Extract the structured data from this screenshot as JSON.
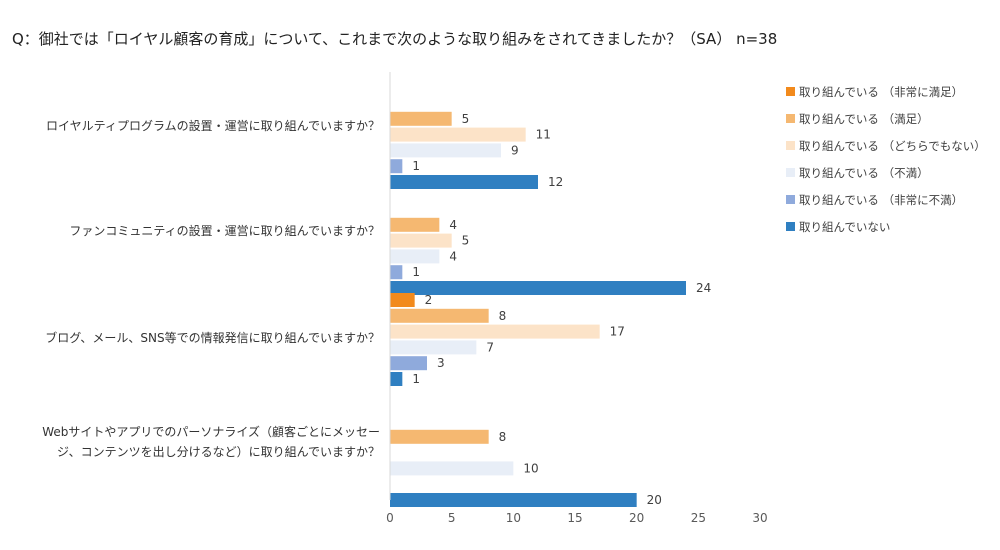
{
  "title": "Q：御社では「ロイヤル顧客の育成」について、これまで次のような取り組みをされてきましたか？（SA） n=38",
  "chart_data": {
    "type": "bar",
    "orientation": "horizontal",
    "title": "Q：御社では「ロイヤル顧客の育成」について、これまで次のような取り組みをされてきましたか？（SA） n=38",
    "categories": [
      "ロイヤルティプログラムの設置・運営に取り組んでいますか？",
      "ファンコミュニティの設置・運営に取り組んでいますか？",
      "ブログ、メール、SNS等での情報発信に取り組んでいますか？",
      "Webサイトやアプリでのパーソナライズ（顧客ごとにメッセージ、コンテンツを出し分けるなど）に取り組んでいますか？"
    ],
    "category_lines": [
      [
        "ロイヤルティプログラムの設置・運営に取り組んでいますか？"
      ],
      [
        "ファンコミュニティの設置・運営に取り組んでいますか？"
      ],
      [
        "ブログ、メール、SNS等での情報発信に取り組んでいますか？"
      ],
      [
        "Webサイトやアプリでのパーソナライズ（顧客ごとにメッセー",
        "ジ、コンテンツを出し分けるなど）に取り組んでいますか？"
      ]
    ],
    "series": [
      {
        "name": "取り組んでいる （非常に満足）",
        "color": "#F28A1C",
        "values": [
          0,
          0,
          2,
          0
        ]
      },
      {
        "name": "取り組んでいる （満足）",
        "color": "#F5B871",
        "values": [
          5,
          4,
          8,
          8
        ]
      },
      {
        "name": "取り組んでいる （どちらでもない）",
        "color": "#FCE3C8",
        "values": [
          11,
          5,
          17,
          0
        ]
      },
      {
        "name": "取り組んでいる （不満）",
        "color": "#E8EEF7",
        "values": [
          9,
          4,
          7,
          10
        ]
      },
      {
        "name": "取り組んでいる （非常に不満）",
        "color": "#8FAADC",
        "values": [
          1,
          1,
          3,
          0
        ]
      },
      {
        "name": "取り組んでいない",
        "color": "#2F7FC1",
        "values": [
          12,
          24,
          1,
          20
        ]
      }
    ],
    "xlim": [
      0,
      30
    ],
    "xticks": [
      0,
      5,
      10,
      15,
      20,
      25,
      30
    ],
    "grid": false,
    "legend_position": "right"
  }
}
